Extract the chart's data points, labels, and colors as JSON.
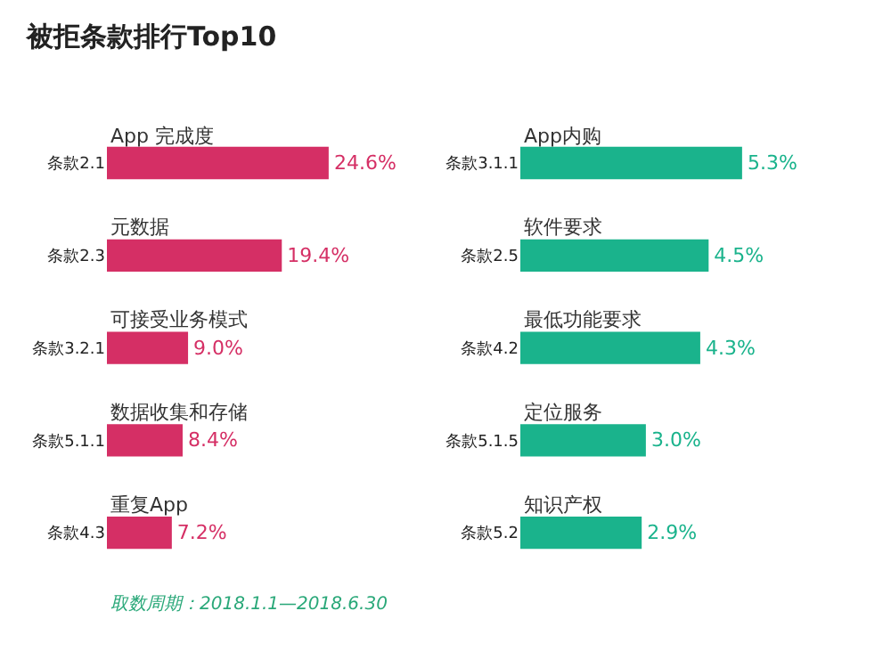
{
  "chart_data": [
    {
      "type": "bar",
      "orientation": "horizontal",
      "title": "被拒条款排行Top10",
      "categories": [
        "条款2.1",
        "条款2.3",
        "条款3.2.1",
        "条款5.1.1",
        "条款4.3"
      ],
      "values": [
        24.6,
        19.4,
        9.0,
        8.4,
        7.2
      ],
      "color": "#d52f65",
      "value_labels": [
        "24.6%",
        "19.4%",
        "9.0%",
        "8.4%",
        "7.2%"
      ],
      "annotations": [
        "App 完成度",
        "元数据",
        "可接受业务模式",
        "数据收集和存储",
        "重复App",
        "取数周期：2018.1.1—2018.6.30"
      ]
    },
    {
      "type": "bar",
      "orientation": "horizontal",
      "categories": [
        "条款3.1.1",
        "条款2.5",
        "条款4.2",
        "条款5.1.5",
        "条款5.2"
      ],
      "values": [
        5.3,
        4.5,
        4.3,
        3.0,
        2.9
      ],
      "color": "#1ab38c",
      "value_labels": [
        "5.3%",
        "4.5%",
        "4.3%",
        "3.0%",
        "2.9%"
      ],
      "annotations": [
        "App内购",
        "软件要求",
        "最低功能要求",
        "定位服务",
        "知识产权"
      ]
    }
  ]
}
